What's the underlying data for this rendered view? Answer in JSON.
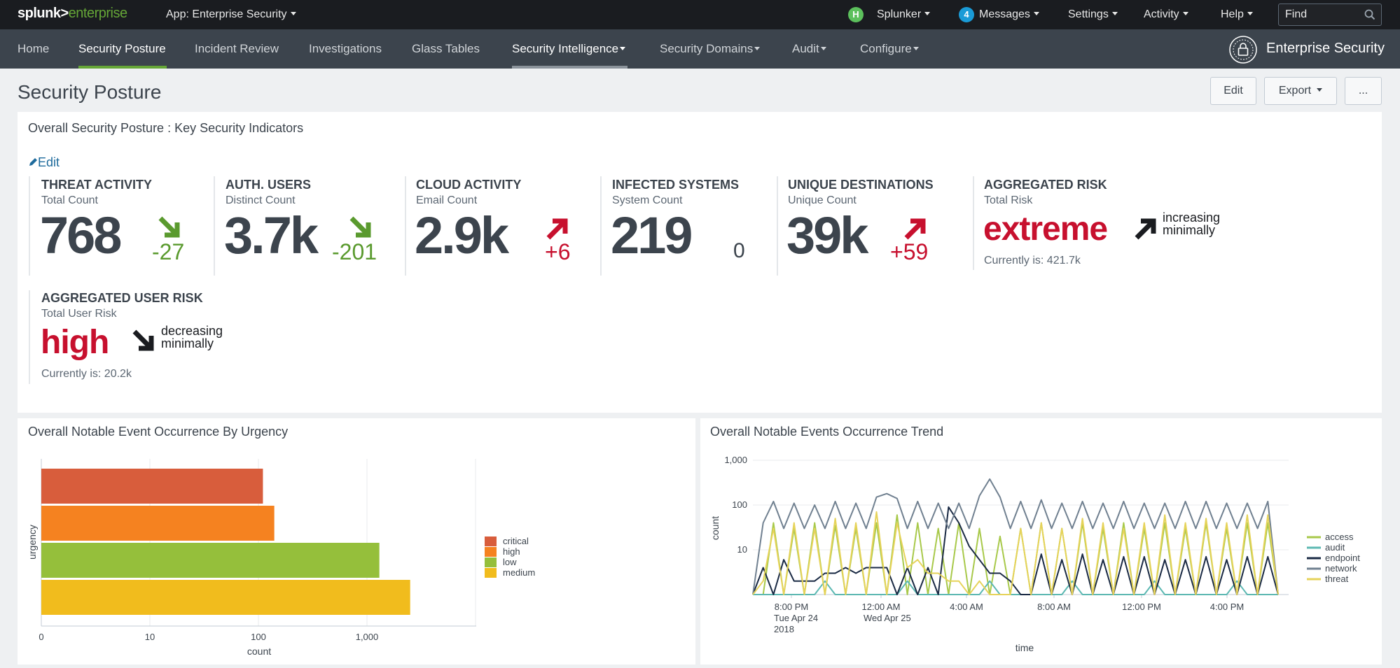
{
  "topbar": {
    "logo_part1": "splunk>",
    "logo_part2": "enterprise",
    "app_label": "App: Enterprise Security",
    "user_initial": "H",
    "user_name": "Splunker",
    "messages_count": "4",
    "messages_label": "Messages",
    "settings_label": "Settings",
    "activity_label": "Activity",
    "help_label": "Help",
    "find_placeholder": "Find"
  },
  "nav": {
    "items": [
      {
        "label": "Home"
      },
      {
        "label": "Security Posture"
      },
      {
        "label": "Incident Review"
      },
      {
        "label": "Investigations"
      },
      {
        "label": "Glass Tables"
      },
      {
        "label": "Security Intelligence"
      },
      {
        "label": "Security Domains"
      },
      {
        "label": "Audit"
      },
      {
        "label": "Configure"
      }
    ],
    "brand": "Enterprise Security"
  },
  "page": {
    "title": "Security Posture",
    "edit_button": "Edit",
    "export_button": "Export",
    "more_button": "..."
  },
  "kpi_panel": {
    "title": "Overall Security Posture : Key Security Indicators",
    "edit_link": "Edit",
    "kpis": [
      {
        "title": "THREAT ACTIVITY",
        "subtitle": "Total Count",
        "value": "768",
        "delta": "-27",
        "trend": "down",
        "color": "#5a9a2e"
      },
      {
        "title": "AUTH. USERS",
        "subtitle": "Distinct Count",
        "value": "3.7k",
        "delta": "-201",
        "trend": "down",
        "color": "#5a9a2e"
      },
      {
        "title": "CLOUD ACTIVITY",
        "subtitle": "Email Count",
        "value": "2.9k",
        "delta": "+6",
        "trend": "up",
        "color": "#c7102e"
      },
      {
        "title": "INFECTED SYSTEMS",
        "subtitle": "System Count",
        "value": "219",
        "delta": "0",
        "trend": "none",
        "color": "#3c444d"
      },
      {
        "title": "UNIQUE DESTINATIONS",
        "subtitle": "Unique Count",
        "value": "39k",
        "delta": "+59",
        "trend": "up",
        "color": "#c7102e"
      }
    ],
    "aggregated_risk": {
      "title": "AGGREGATED RISK",
      "subtitle": "Total Risk",
      "level": "extreme",
      "trend_line1": "increasing",
      "trend_line2": "minimally",
      "currently": "Currently is: 421.7k"
    },
    "aggregated_user_risk": {
      "title": "AGGREGATED USER RISK",
      "subtitle": "Total User Risk",
      "level": "high",
      "trend_line1": "decreasing",
      "trend_line2": "minimally",
      "currently": "Currently is: 20.2k"
    }
  },
  "urgency_panel": {
    "title": "Overall Notable Event Occurrence By Urgency"
  },
  "trend_panel": {
    "title": "Overall Notable Events Occurrence Trend"
  },
  "chart_data": [
    {
      "type": "bar",
      "orientation": "horizontal",
      "scale": "log",
      "categories": [
        "critical",
        "high",
        "low",
        "medium"
      ],
      "values": [
        110,
        140,
        1300,
        2500
      ],
      "colors": [
        "#d85d3c",
        "#f58220",
        "#95bf3b",
        "#f1bc1d"
      ],
      "xlabel": "count",
      "ylabel": "urgency",
      "xticks": [
        "0",
        "10",
        "100",
        "1,000"
      ],
      "legend": "right",
      "grid": true
    },
    {
      "type": "line",
      "scale": "log",
      "xlabel": "time",
      "ylabel": "count",
      "yticks": [
        "1,000",
        "100",
        "10"
      ],
      "ylim": [
        1,
        1000
      ],
      "xticks": [
        {
          "line1": "8:00 PM",
          "line2": "Tue Apr 24",
          "line3": "2018"
        },
        {
          "line1": "12:00 AM",
          "line2": "Wed Apr 25",
          "line3": ""
        },
        {
          "line1": "4:00 AM",
          "line2": "",
          "line3": ""
        },
        {
          "line1": "8:00 AM",
          "line2": "",
          "line3": ""
        },
        {
          "line1": "12:00 PM",
          "line2": "",
          "line3": ""
        },
        {
          "line1": "4:00 PM",
          "line2": "",
          "line3": ""
        }
      ],
      "legend": "right",
      "series": [
        {
          "name": "access",
          "color": "#a8c94a",
          "values": [
            1,
            1,
            40,
            1,
            30,
            1,
            40,
            1,
            35,
            1,
            30,
            1,
            40,
            1,
            60,
            1,
            40,
            1,
            30,
            1,
            40,
            1,
            30,
            1,
            20,
            1,
            30,
            1,
            40,
            1,
            30,
            1,
            40,
            1,
            30,
            1,
            40,
            1,
            30,
            1,
            40,
            1,
            30,
            1,
            40,
            1,
            30,
            1,
            40,
            1,
            40,
            1
          ]
        },
        {
          "name": "audit",
          "color": "#5cb8b2",
          "values": [
            1,
            1,
            1,
            1,
            1,
            1,
            1,
            2,
            1,
            1,
            1,
            1,
            1,
            1,
            1,
            2,
            1,
            1,
            1,
            1,
            1,
            1,
            1,
            2,
            1,
            1,
            1,
            1,
            1,
            1,
            1,
            2,
            1,
            1,
            1,
            1,
            1,
            1,
            1,
            2,
            1,
            1,
            1,
            1,
            1,
            1,
            1,
            2,
            1,
            1,
            1,
            1
          ]
        },
        {
          "name": "endpoint",
          "color": "#1a2a44",
          "values": [
            1,
            4,
            1,
            6,
            2,
            2,
            2,
            3,
            3,
            4,
            3,
            4,
            4,
            4,
            1,
            4,
            1,
            4,
            1,
            90,
            40,
            12,
            6,
            3,
            3,
            2,
            1,
            1,
            8,
            1,
            6,
            1,
            8,
            1,
            6,
            1,
            7,
            1,
            7,
            1,
            6,
            1,
            6,
            1,
            7,
            1,
            6,
            1,
            7,
            1,
            7,
            1
          ]
        },
        {
          "name": "network",
          "color": "#708090",
          "values": [
            1,
            40,
            120,
            30,
            110,
            30,
            100,
            30,
            120,
            30,
            110,
            30,
            150,
            180,
            140,
            30,
            120,
            30,
            110,
            30,
            110,
            30,
            160,
            380,
            150,
            30,
            120,
            30,
            130,
            30,
            110,
            30,
            120,
            30,
            110,
            30,
            120,
            30,
            110,
            30,
            110,
            30,
            120,
            30,
            120,
            30,
            110,
            30,
            110,
            30,
            120,
            1
          ]
        },
        {
          "name": "threat",
          "color": "#e6d35a",
          "values": [
            1,
            2,
            30,
            1,
            40,
            1,
            30,
            1,
            50,
            1,
            40,
            1,
            70,
            1,
            40,
            4,
            6,
            3,
            3,
            2,
            2,
            1,
            2,
            1,
            1,
            1,
            30,
            1,
            40,
            1,
            30,
            1,
            50,
            1,
            40,
            1,
            30,
            1,
            40,
            1,
            60,
            1,
            40,
            1,
            50,
            1,
            40,
            1,
            60,
            1,
            60,
            1
          ]
        }
      ]
    }
  ]
}
